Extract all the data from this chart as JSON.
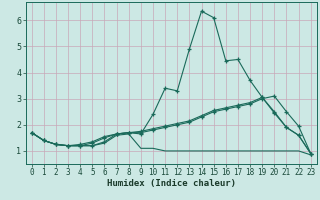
{
  "xlabel": "Humidex (Indice chaleur)",
  "x_values": [
    0,
    1,
    2,
    3,
    4,
    5,
    6,
    7,
    8,
    9,
    10,
    11,
    12,
    13,
    14,
    15,
    16,
    17,
    18,
    19,
    20,
    21,
    22,
    23
  ],
  "line1": [
    1.7,
    1.4,
    1.25,
    1.2,
    1.2,
    1.2,
    1.3,
    1.6,
    1.65,
    1.1,
    1.1,
    1.0,
    1.0,
    1.0,
    1.0,
    1.0,
    1.0,
    1.0,
    1.0,
    1.0,
    1.0,
    1.0,
    1.0,
    0.85
  ],
  "line2": [
    1.7,
    1.4,
    1.25,
    1.2,
    1.2,
    1.2,
    1.35,
    1.65,
    1.7,
    1.65,
    2.4,
    3.4,
    3.3,
    4.9,
    6.35,
    6.1,
    4.45,
    4.5,
    3.7,
    3.05,
    2.5,
    1.9,
    1.6,
    0.9
  ],
  "line3": [
    1.7,
    1.4,
    1.25,
    1.2,
    1.2,
    1.3,
    1.5,
    1.65,
    1.7,
    1.7,
    1.8,
    1.9,
    2.0,
    2.1,
    2.3,
    2.5,
    2.6,
    2.7,
    2.8,
    3.0,
    3.1,
    2.5,
    1.95,
    0.9
  ],
  "line4": [
    1.7,
    1.4,
    1.25,
    1.2,
    1.25,
    1.35,
    1.55,
    1.65,
    1.7,
    1.75,
    1.85,
    1.95,
    2.05,
    2.15,
    2.35,
    2.55,
    2.65,
    2.75,
    2.85,
    3.05,
    2.45,
    1.9,
    1.6,
    0.9
  ],
  "bg_color": "#cce8e4",
  "grid_color_h": "#c8a8b8",
  "grid_color_v": "#c8a8b8",
  "line_color": "#1a6a5a",
  "ylim": [
    0.5,
    6.7
  ],
  "xlim": [
    -0.5,
    23.5
  ],
  "yticks": [
    1,
    2,
    3,
    4,
    5,
    6
  ],
  "xticks": [
    0,
    1,
    2,
    3,
    4,
    5,
    6,
    7,
    8,
    9,
    10,
    11,
    12,
    13,
    14,
    15,
    16,
    17,
    18,
    19,
    20,
    21,
    22,
    23
  ],
  "xlabel_fontsize": 6.5,
  "tick_fontsize": 5.5
}
